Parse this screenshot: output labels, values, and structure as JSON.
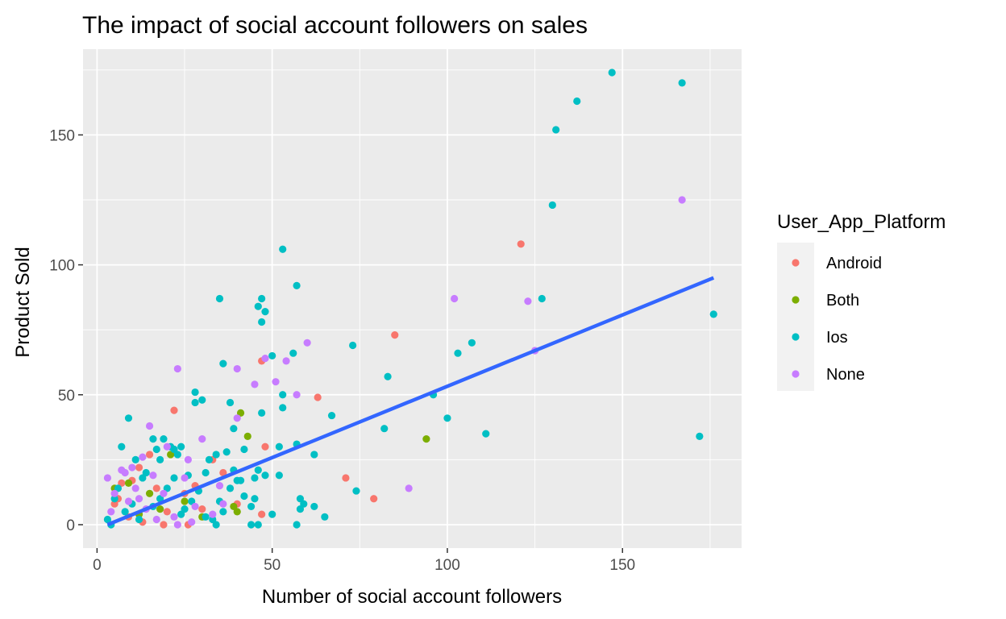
{
  "chart_data": {
    "type": "scatter",
    "title": "The impact of social account followers on sales",
    "xlabel": "Number of social account followers",
    "ylabel": "Product Sold",
    "xlim": [
      -4,
      184
    ],
    "ylim": [
      -9,
      183
    ],
    "x_ticks": [
      0,
      50,
      100,
      150
    ],
    "y_ticks": [
      0,
      50,
      100,
      150
    ],
    "grid": true,
    "legend": {
      "title": "User_App_Platform",
      "placement": "right"
    },
    "series": [
      {
        "name": "Android",
        "color": "#F8766D",
        "points": [
          [
            22,
            44
          ],
          [
            121,
            108
          ],
          [
            85,
            73
          ],
          [
            47,
            63
          ],
          [
            63,
            49
          ],
          [
            48,
            30
          ],
          [
            71,
            18
          ],
          [
            79,
            10
          ],
          [
            33,
            25
          ],
          [
            36,
            20
          ],
          [
            7,
            16
          ],
          [
            15,
            27
          ],
          [
            10,
            17
          ],
          [
            25,
            12
          ],
          [
            30,
            6
          ],
          [
            47,
            4
          ],
          [
            12,
            22
          ],
          [
            17,
            14
          ],
          [
            5,
            8
          ],
          [
            40,
            8
          ],
          [
            20,
            5
          ],
          [
            28,
            15
          ],
          [
            9,
            3
          ],
          [
            13,
            1
          ],
          [
            19,
            0
          ],
          [
            26,
            0
          ],
          [
            6,
            10
          ]
        ]
      },
      {
        "name": "Both",
        "color": "#7CAE00",
        "points": [
          [
            94,
            33
          ],
          [
            41,
            43
          ],
          [
            43,
            34
          ],
          [
            21,
            27
          ],
          [
            9,
            16
          ],
          [
            39,
            7
          ],
          [
            40,
            5
          ],
          [
            25,
            9
          ],
          [
            15,
            12
          ],
          [
            30,
            3
          ],
          [
            12,
            4
          ],
          [
            5,
            14
          ],
          [
            18,
            6
          ]
        ]
      },
      {
        "name": "Ios",
        "color": "#00BFC4",
        "points": [
          [
            147,
            174
          ],
          [
            167,
            170
          ],
          [
            137,
            163
          ],
          [
            131,
            152
          ],
          [
            130,
            123
          ],
          [
            127,
            87
          ],
          [
            176,
            81
          ],
          [
            172,
            34
          ],
          [
            111,
            35
          ],
          [
            107,
            70
          ],
          [
            103,
            66
          ],
          [
            100,
            41
          ],
          [
            96,
            50
          ],
          [
            83,
            57
          ],
          [
            82,
            37
          ],
          [
            73,
            69
          ],
          [
            74,
            13
          ],
          [
            67,
            42
          ],
          [
            65,
            3
          ],
          [
            62,
            27
          ],
          [
            62,
            7
          ],
          [
            59,
            8
          ],
          [
            58,
            6
          ],
          [
            57,
            92
          ],
          [
            57,
            31
          ],
          [
            57,
            0
          ],
          [
            58,
            10
          ],
          [
            53,
            106
          ],
          [
            53,
            50
          ],
          [
            53,
            45
          ],
          [
            52,
            30
          ],
          [
            52,
            19
          ],
          [
            56,
            66
          ],
          [
            50,
            65
          ],
          [
            47,
            87
          ],
          [
            46,
            84
          ],
          [
            48,
            82
          ],
          [
            47,
            78
          ],
          [
            47,
            43
          ],
          [
            46,
            21
          ],
          [
            48,
            19
          ],
          [
            45,
            18
          ],
          [
            42,
            29
          ],
          [
            41,
            17
          ],
          [
            40,
            17
          ],
          [
            36,
            62
          ],
          [
            35,
            87
          ],
          [
            38,
            47
          ],
          [
            39,
            37
          ],
          [
            39,
            21
          ],
          [
            37,
            28
          ],
          [
            34,
            27
          ],
          [
            32,
            25
          ],
          [
            31,
            20
          ],
          [
            30,
            48
          ],
          [
            28,
            51
          ],
          [
            28,
            47
          ],
          [
            26,
            19
          ],
          [
            24,
            30
          ],
          [
            23,
            27
          ],
          [
            22,
            29
          ],
          [
            21,
            30
          ],
          [
            19,
            33
          ],
          [
            18,
            25
          ],
          [
            17,
            29
          ],
          [
            16,
            33
          ],
          [
            9,
            41
          ],
          [
            7,
            30
          ],
          [
            11,
            25
          ],
          [
            13,
            18
          ],
          [
            5,
            10
          ],
          [
            8,
            5
          ],
          [
            3,
            2
          ],
          [
            44,
            7
          ],
          [
            45,
            10
          ],
          [
            50,
            4
          ],
          [
            36,
            5
          ],
          [
            33,
            2
          ],
          [
            27,
            9
          ],
          [
            20,
            14
          ],
          [
            14,
            20
          ],
          [
            10,
            8
          ],
          [
            6,
            14
          ],
          [
            4,
            0
          ],
          [
            12,
            2
          ],
          [
            18,
            10
          ],
          [
            24,
            4
          ],
          [
            29,
            13
          ],
          [
            34,
            0
          ],
          [
            38,
            14
          ],
          [
            42,
            11
          ],
          [
            35,
            9
          ],
          [
            31,
            3
          ],
          [
            22,
            18
          ],
          [
            16,
            7
          ],
          [
            25,
            6
          ],
          [
            44,
            0
          ],
          [
            46,
            0
          ]
        ]
      },
      {
        "name": "None",
        "color": "#C77CFF",
        "points": [
          [
            167,
            125
          ],
          [
            123,
            86
          ],
          [
            102,
            87
          ],
          [
            125,
            67
          ],
          [
            89,
            14
          ],
          [
            60,
            70
          ],
          [
            54,
            63
          ],
          [
            51,
            55
          ],
          [
            57,
            50
          ],
          [
            48,
            64
          ],
          [
            45,
            54
          ],
          [
            40,
            60
          ],
          [
            40,
            41
          ],
          [
            23,
            60
          ],
          [
            15,
            38
          ],
          [
            8,
            20
          ],
          [
            7,
            21
          ],
          [
            3,
            18
          ],
          [
            30,
            33
          ],
          [
            26,
            25
          ],
          [
            13,
            26
          ],
          [
            20,
            30
          ],
          [
            10,
            22
          ],
          [
            19,
            12
          ],
          [
            28,
            7
          ],
          [
            35,
            15
          ],
          [
            33,
            4
          ],
          [
            22,
            3
          ],
          [
            11,
            14
          ],
          [
            5,
            12
          ],
          [
            14,
            6
          ],
          [
            17,
            2
          ],
          [
            23,
            0
          ],
          [
            27,
            1
          ],
          [
            9,
            9
          ],
          [
            4,
            5
          ],
          [
            36,
            8
          ],
          [
            25,
            18
          ],
          [
            16,
            19
          ],
          [
            12,
            10
          ]
        ]
      }
    ],
    "trend_line": {
      "color": "#3366FF",
      "x": [
        3,
        176
      ],
      "y": [
        0,
        95
      ]
    }
  }
}
